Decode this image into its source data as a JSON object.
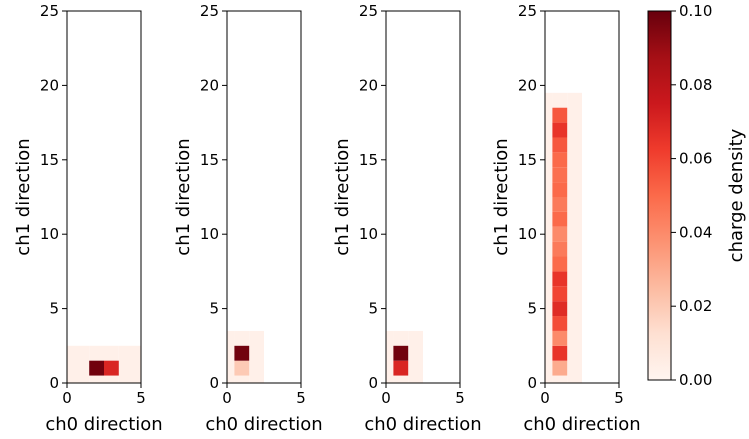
{
  "chart_data": [
    {
      "type": "heatmap",
      "xlabel": "ch0 direction",
      "ylabel": "ch1 direction",
      "xlim": [
        0,
        5
      ],
      "ylim": [
        0,
        25
      ],
      "xticks": [
        "0",
        "5"
      ],
      "yticks": [
        "0",
        "5",
        "10",
        "15",
        "20",
        "25"
      ],
      "cells": [
        {
          "x0": 0,
          "x1": 1.5,
          "y0": 0,
          "y1": 2.5,
          "v": 0.003
        },
        {
          "x0": 3.5,
          "x1": 5,
          "y0": 0,
          "y1": 2.5,
          "v": 0.003
        },
        {
          "x0": 1.5,
          "x1": 3.5,
          "y0": 0,
          "y1": 0.5,
          "v": 0.003
        },
        {
          "x0": 1.5,
          "x1": 3.5,
          "y0": 1.5,
          "y1": 2.5,
          "v": 0.003
        },
        {
          "x0": 1.5,
          "x1": 2.5,
          "y0": 0.5,
          "y1": 1.5,
          "v": 0.098
        },
        {
          "x0": 2.5,
          "x1": 3.5,
          "y0": 0.5,
          "y1": 1.5,
          "v": 0.07
        }
      ]
    },
    {
      "type": "heatmap",
      "xlabel": "ch0 direction",
      "ylabel": "ch1 direction",
      "xlim": [
        0,
        5
      ],
      "ylim": [
        0,
        25
      ],
      "xticks": [
        "0",
        "5"
      ],
      "yticks": [
        "0",
        "5",
        "10",
        "15",
        "20",
        "25"
      ],
      "cells": [
        {
          "x0": 0,
          "x1": 0.5,
          "y0": 0,
          "y1": 3.5,
          "v": 0.003
        },
        {
          "x0": 1.5,
          "x1": 2.5,
          "y0": 0,
          "y1": 3.5,
          "v": 0.003
        },
        {
          "x0": 0.5,
          "x1": 1.5,
          "y0": 0,
          "y1": 0.5,
          "v": 0.003
        },
        {
          "x0": 0.5,
          "x1": 1.5,
          "y0": 2.5,
          "y1": 3.5,
          "v": 0.003
        },
        {
          "x0": 0.5,
          "x1": 1.5,
          "y0": 0.5,
          "y1": 1.5,
          "v": 0.02
        },
        {
          "x0": 0.5,
          "x1": 1.5,
          "y0": 1.5,
          "y1": 2.5,
          "v": 0.098
        }
      ]
    },
    {
      "type": "heatmap",
      "xlabel": "ch0 direction",
      "ylabel": "ch1 direction",
      "xlim": [
        0,
        5
      ],
      "ylim": [
        0,
        25
      ],
      "xticks": [
        "0",
        "5"
      ],
      "yticks": [
        "0",
        "5",
        "10",
        "15",
        "20",
        "25"
      ],
      "cells": [
        {
          "x0": 0,
          "x1": 0.5,
          "y0": 0,
          "y1": 3.5,
          "v": 0.003
        },
        {
          "x0": 1.5,
          "x1": 2.5,
          "y0": 0,
          "y1": 3.5,
          "v": 0.003
        },
        {
          "x0": 0.5,
          "x1": 1.5,
          "y0": 0,
          "y1": 0.5,
          "v": 0.003
        },
        {
          "x0": 0.5,
          "x1": 1.5,
          "y0": 2.5,
          "y1": 3.5,
          "v": 0.003
        },
        {
          "x0": 0.5,
          "x1": 1.5,
          "y0": 0.5,
          "y1": 1.5,
          "v": 0.07
        },
        {
          "x0": 0.5,
          "x1": 1.5,
          "y0": 1.5,
          "y1": 2.5,
          "v": 0.098
        }
      ]
    },
    {
      "type": "heatmap",
      "xlabel": "ch0 direction",
      "ylabel": "ch1 direction",
      "xlim": [
        0,
        5
      ],
      "ylim": [
        0,
        25
      ],
      "xticks": [
        "0",
        "5"
      ],
      "yticks": [
        "0",
        "5",
        "10",
        "15",
        "20",
        "25"
      ],
      "cells": [
        {
          "x0": 0,
          "x1": 0.5,
          "y0": 0,
          "y1": 19.5,
          "v": 0.003
        },
        {
          "x0": 1.5,
          "x1": 2.5,
          "y0": 0,
          "y1": 19.5,
          "v": 0.003
        },
        {
          "x0": 0.5,
          "x1": 1.5,
          "y0": 18.5,
          "y1": 19.5,
          "v": 0.003
        },
        {
          "x0": 0.5,
          "x1": 1.5,
          "y0": 0,
          "y1": 0.5,
          "v": 0.003
        },
        {
          "x0": 0.5,
          "x1": 1.5,
          "y0": 0.5,
          "y1": 1.5,
          "v": 0.03
        },
        {
          "x0": 0.5,
          "x1": 1.5,
          "y0": 1.5,
          "y1": 2.5,
          "v": 0.065
        },
        {
          "x0": 0.5,
          "x1": 1.5,
          "y0": 2.5,
          "y1": 3.5,
          "v": 0.04
        },
        {
          "x0": 0.5,
          "x1": 1.5,
          "y0": 3.5,
          "y1": 4.5,
          "v": 0.058
        },
        {
          "x0": 0.5,
          "x1": 1.5,
          "y0": 4.5,
          "y1": 5.5,
          "v": 0.068
        },
        {
          "x0": 0.5,
          "x1": 1.5,
          "y0": 5.5,
          "y1": 6.5,
          "v": 0.06
        },
        {
          "x0": 0.5,
          "x1": 1.5,
          "y0": 6.5,
          "y1": 7.5,
          "v": 0.065
        },
        {
          "x0": 0.5,
          "x1": 1.5,
          "y0": 7.5,
          "y1": 8.5,
          "v": 0.05
        },
        {
          "x0": 0.5,
          "x1": 1.5,
          "y0": 8.5,
          "y1": 9.5,
          "v": 0.045
        },
        {
          "x0": 0.5,
          "x1": 1.5,
          "y0": 9.5,
          "y1": 10.5,
          "v": 0.04
        },
        {
          "x0": 0.5,
          "x1": 1.5,
          "y0": 10.5,
          "y1": 11.5,
          "v": 0.05
        },
        {
          "x0": 0.5,
          "x1": 1.5,
          "y0": 11.5,
          "y1": 12.5,
          "v": 0.045
        },
        {
          "x0": 0.5,
          "x1": 1.5,
          "y0": 12.5,
          "y1": 13.5,
          "v": 0.05
        },
        {
          "x0": 0.5,
          "x1": 1.5,
          "y0": 13.5,
          "y1": 14.5,
          "v": 0.048
        },
        {
          "x0": 0.5,
          "x1": 1.5,
          "y0": 14.5,
          "y1": 15.5,
          "v": 0.05
        },
        {
          "x0": 0.5,
          "x1": 1.5,
          "y0": 15.5,
          "y1": 16.5,
          "v": 0.055
        },
        {
          "x0": 0.5,
          "x1": 1.5,
          "y0": 16.5,
          "y1": 17.5,
          "v": 0.065
        },
        {
          "x0": 0.5,
          "x1": 1.5,
          "y0": 17.5,
          "y1": 18.5,
          "v": 0.055
        }
      ]
    }
  ],
  "colorbar": {
    "label": "charge density",
    "colormap": "Reds",
    "vmin": 0.0,
    "vmax": 0.1,
    "ticks": [
      {
        "value": 0.0,
        "label": "0.00"
      },
      {
        "value": 0.02,
        "label": "0.02"
      },
      {
        "value": 0.04,
        "label": "0.04"
      },
      {
        "value": 0.06,
        "label": "0.06"
      },
      {
        "value": 0.08,
        "label": "0.08"
      },
      {
        "value": 0.1,
        "label": "0.10"
      }
    ]
  }
}
